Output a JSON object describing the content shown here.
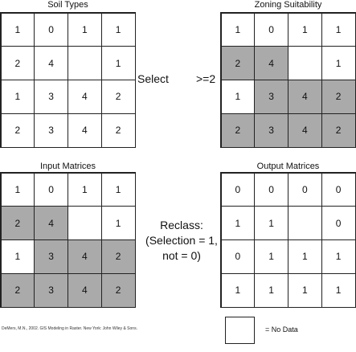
{
  "panels": [
    {
      "id": "soil-types",
      "title": "Soil Types",
      "cells": [
        [
          "1",
          "0",
          "1",
          "1"
        ],
        [
          "2",
          "4",
          "",
          "1"
        ],
        [
          "1",
          "3",
          "4",
          "2"
        ],
        [
          "2",
          "3",
          "4",
          "2"
        ]
      ],
      "selected": [
        [
          0,
          0,
          0,
          0
        ],
        [
          0,
          0,
          0,
          0
        ],
        [
          0,
          0,
          0,
          0
        ],
        [
          0,
          0,
          0,
          0
        ]
      ]
    },
    {
      "id": "zoning-suitability",
      "title": "Zoning Suitability",
      "cells": [
        [
          "1",
          "0",
          "1",
          "1"
        ],
        [
          "2",
          "4",
          "",
          "1"
        ],
        [
          "1",
          "3",
          "4",
          "2"
        ],
        [
          "2",
          "3",
          "4",
          "2"
        ]
      ],
      "selected": [
        [
          0,
          0,
          0,
          0
        ],
        [
          1,
          1,
          0,
          0
        ],
        [
          0,
          1,
          1,
          1
        ],
        [
          1,
          1,
          1,
          1
        ]
      ]
    },
    {
      "id": "input-matrices",
      "title": "Input Matrices",
      "cells": [
        [
          "1",
          "0",
          "1",
          "1"
        ],
        [
          "2",
          "4",
          "",
          "1"
        ],
        [
          "1",
          "3",
          "4",
          "2"
        ],
        [
          "2",
          "3",
          "4",
          "2"
        ]
      ],
      "selected": [
        [
          0,
          0,
          0,
          0
        ],
        [
          1,
          1,
          0,
          0
        ],
        [
          0,
          1,
          1,
          1
        ],
        [
          1,
          1,
          1,
          1
        ]
      ]
    },
    {
      "id": "output-matrices",
      "title": "Output Matrices",
      "cells": [
        [
          "0",
          "0",
          "0",
          "0"
        ],
        [
          "1",
          "1",
          "",
          "0"
        ],
        [
          "0",
          "1",
          "1",
          "1"
        ],
        [
          "1",
          "1",
          "1",
          "1"
        ]
      ],
      "selected": [
        [
          0,
          0,
          0,
          0
        ],
        [
          0,
          0,
          0,
          0
        ],
        [
          0,
          0,
          0,
          0
        ],
        [
          0,
          0,
          0,
          0
        ]
      ]
    }
  ],
  "operations": {
    "select_label": "Select",
    "condition_label": ">=2",
    "reclass_line1": "Reclass:",
    "reclass_line2": "(Selection = 1,",
    "reclass_line3": "not = 0)"
  },
  "legend": {
    "label": "= No Data"
  },
  "citation": "DeMers, M.N., 2002. GIS Modeling in Raster. New York: John Wiley & Sons.",
  "colors": {
    "selected_fill": "#aaaaaa",
    "grid_line": "#222222"
  }
}
